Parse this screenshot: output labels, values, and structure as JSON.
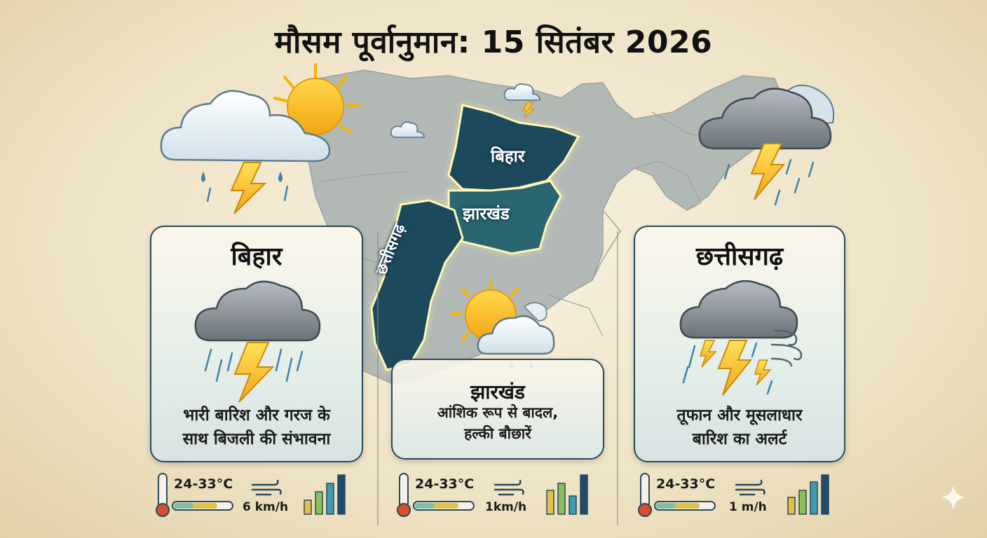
{
  "title": "मौसम पूर्वानुमान: 15 सितंबर 2026",
  "map": {
    "labels": {
      "bihar": "बिहार",
      "jharkhand": "झारखंड",
      "chhattisgarh": "छत्तीसगढ़"
    }
  },
  "regions": [
    {
      "name": "बिहार",
      "forecast": [
        "भारी बारिश और गरज के",
        "साथ बिजली की संभावना"
      ],
      "temperature": "24-33°C",
      "wind": "6 km/h",
      "icon": "thunderstorm-rain-icon"
    },
    {
      "name": "झारखंड",
      "forecast": [
        "आंशिक रूप से बादल,",
        "हल्की बौछारें"
      ],
      "temperature": "24-33°C",
      "wind": "1km/h",
      "icon": "partly-cloudy-showers-icon"
    },
    {
      "name": "छत्तीसगढ़",
      "forecast": [
        "तूफान और मूसलाधार",
        "बारिश का अलर्ट"
      ],
      "temperature": "24-33°C",
      "wind": "1 m/h",
      "icon": "storm-heavy-rain-wind-icon"
    }
  ],
  "colors": {
    "highlight_state": "#1f4a5c",
    "map_land": "#a9b2b1",
    "sun": "#f4b400",
    "lightning": "#f6c62a",
    "card_border": "#274a59",
    "bar_colors": [
      "#e2c145",
      "#8cbf5a",
      "#3e9bb0",
      "#1f4a6b"
    ]
  }
}
